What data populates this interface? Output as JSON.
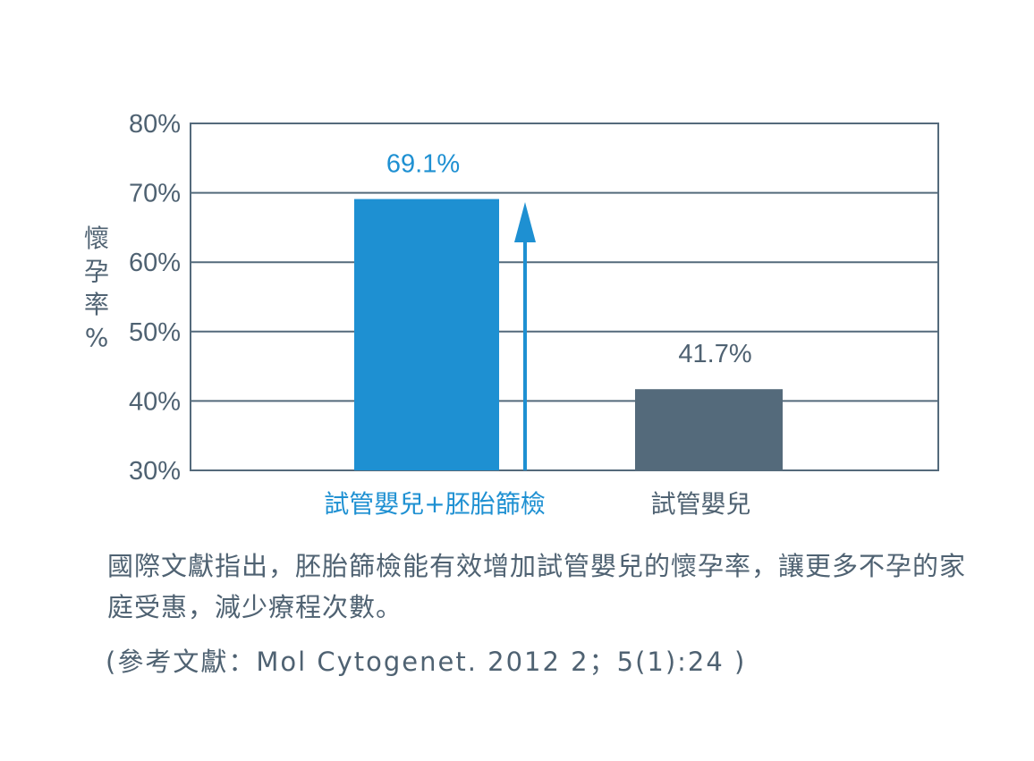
{
  "chart_data": {
    "type": "bar",
    "categories": [
      "試管嬰兒+胚胎篩檢",
      "試管嬰兒"
    ],
    "values": [
      69.1,
      41.7
    ],
    "data_labels": [
      "69.1%",
      "41.7%"
    ],
    "ylabel_chars": [
      "懷",
      "孕",
      "率",
      "%"
    ],
    "yticks": [
      30,
      40,
      50,
      60,
      70,
      80
    ],
    "ytick_labels": [
      "30%",
      "40%",
      "50%",
      "60%",
      "70%",
      "80%"
    ],
    "ylim": [
      30,
      80
    ],
    "grid": true,
    "colors": {
      "bar_primary": "#1e90d2",
      "bar_secondary": "#546a7b",
      "label_primary": "#1e90d2",
      "label_secondary": "#4f6272",
      "grid": "#546a7b",
      "arrow": "#1e90d2"
    },
    "annotations": [
      "up-arrow-beside-first-bar"
    ]
  },
  "text": {
    "note": "國際文獻指出，胚胎篩檢能有效增加試管嬰兒的懷孕率，讓更多不孕的家庭受惠，減少療程次數。",
    "reference": "(參考文獻：Mol Cytogenet. 2012 2；5(1):24 )"
  }
}
